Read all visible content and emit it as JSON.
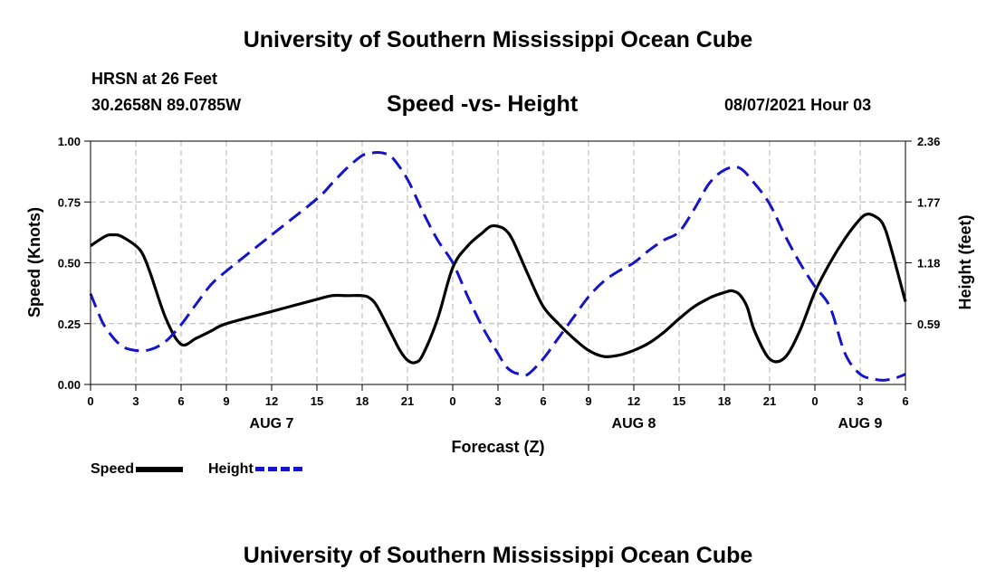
{
  "header": {
    "title": "University of Southern Mississippi Ocean Cube",
    "station": "HRSN at 26 Feet",
    "coords": "30.2658N  89.0785W",
    "plot_title": "Speed -vs- Height",
    "datetime": "08/07/2021 Hour 03"
  },
  "footer": {
    "title": "University of Southern Mississippi Ocean Cube"
  },
  "legend": {
    "speed_label": "Speed",
    "height_label": "Height"
  },
  "colors": {
    "speed": "#000000",
    "height": "#1414c8",
    "grid": "#b4b4b4"
  },
  "chart_data": {
    "type": "line",
    "title": "Speed -vs- Height",
    "xlabel": "Forecast (Z)",
    "ylabel": "Speed (Knots)",
    "y2label": "Height (feet)",
    "xlim": [
      0,
      54
    ],
    "ylim": [
      0,
      1
    ],
    "y2lim": [
      0,
      2.36
    ],
    "x_ticks": [
      0,
      3,
      6,
      9,
      12,
      15,
      18,
      21,
      24,
      27,
      30,
      33,
      36,
      39,
      42,
      45,
      48,
      51,
      54
    ],
    "x_tick_labels": [
      "0",
      "3",
      "6",
      "9",
      "12",
      "15",
      "18",
      "21",
      "0",
      "3",
      "6",
      "9",
      "12",
      "15",
      "18",
      "21",
      "0",
      "3",
      "6"
    ],
    "y_ticks": [
      0,
      0.25,
      0.5,
      0.75,
      1.0
    ],
    "y_tick_labels": [
      "0.00",
      "0.25",
      "0.50",
      "0.75",
      "1.00"
    ],
    "y2_ticks": [
      0.59,
      1.18,
      1.77,
      2.36
    ],
    "y2_tick_labels": [
      "0.59",
      "1.18",
      "1.77",
      "2.36"
    ],
    "date_labels": [
      {
        "x": 12,
        "label": "AUG 7"
      },
      {
        "x": 36,
        "label": "AUG 8"
      },
      {
        "x": 51,
        "label": "AUG 9"
      }
    ],
    "grid": true,
    "legend_position": "bottom-left",
    "series": [
      {
        "name": "Speed",
        "axis": "left",
        "style": "solid",
        "x": [
          0,
          1,
          1.5,
          2,
          3,
          3.5,
          4,
          5,
          6,
          7,
          8,
          9,
          12,
          15,
          16,
          17,
          18,
          18.5,
          19,
          20,
          20.5,
          21,
          21.5,
          22,
          23,
          24,
          25,
          26,
          26.5,
          27,
          27.5,
          28,
          29,
          30,
          31,
          32,
          33,
          34,
          35,
          36,
          37,
          38,
          39,
          40,
          41,
          41.5,
          42,
          42.5,
          43,
          43.5,
          44,
          45,
          46,
          47,
          48,
          49,
          50,
          51,
          51.5,
          52,
          52.5,
          53,
          54
        ],
        "y": [
          0.57,
          0.61,
          0.615,
          0.61,
          0.57,
          0.53,
          0.45,
          0.27,
          0.165,
          0.19,
          0.22,
          0.25,
          0.3,
          0.35,
          0.365,
          0.365,
          0.365,
          0.355,
          0.32,
          0.2,
          0.14,
          0.1,
          0.09,
          0.12,
          0.27,
          0.48,
          0.57,
          0.625,
          0.65,
          0.65,
          0.635,
          0.59,
          0.45,
          0.32,
          0.25,
          0.19,
          0.14,
          0.115,
          0.12,
          0.14,
          0.17,
          0.215,
          0.27,
          0.32,
          0.355,
          0.368,
          0.378,
          0.385,
          0.37,
          0.32,
          0.22,
          0.105,
          0.11,
          0.22,
          0.38,
          0.5,
          0.6,
          0.68,
          0.7,
          0.69,
          0.66,
          0.57,
          0.34
        ]
      },
      {
        "name": "Height",
        "axis": "right",
        "style": "dashed",
        "x": [
          0,
          0.5,
          1,
          2,
          3,
          4,
          5,
          6,
          7,
          8,
          9,
          12,
          15,
          16,
          17,
          18,
          18.5,
          19,
          19.5,
          20,
          21,
          22,
          23,
          24,
          25,
          26,
          27,
          27.5,
          28,
          28.5,
          29,
          30,
          31,
          32,
          33,
          34,
          35,
          36,
          37,
          38,
          39,
          40,
          41,
          42,
          43,
          44,
          45,
          46,
          47,
          48,
          49,
          50,
          51,
          52,
          52.5,
          53,
          53.5,
          54
        ],
        "y": [
          0.88,
          0.7,
          0.55,
          0.38,
          0.33,
          0.34,
          0.42,
          0.58,
          0.78,
          0.97,
          1.1,
          1.45,
          1.8,
          1.95,
          2.1,
          2.22,
          2.24,
          2.25,
          2.24,
          2.2,
          1.99,
          1.68,
          1.4,
          1.18,
          0.85,
          0.55,
          0.3,
          0.18,
          0.12,
          0.1,
          0.1,
          0.25,
          0.45,
          0.65,
          0.85,
          1.0,
          1.1,
          1.18,
          1.3,
          1.4,
          1.48,
          1.7,
          1.95,
          2.08,
          2.1,
          1.95,
          1.75,
          1.45,
          1.18,
          0.95,
          0.75,
          0.3,
          0.1,
          0.05,
          0.04,
          0.05,
          0.07,
          0.1
        ]
      }
    ]
  }
}
